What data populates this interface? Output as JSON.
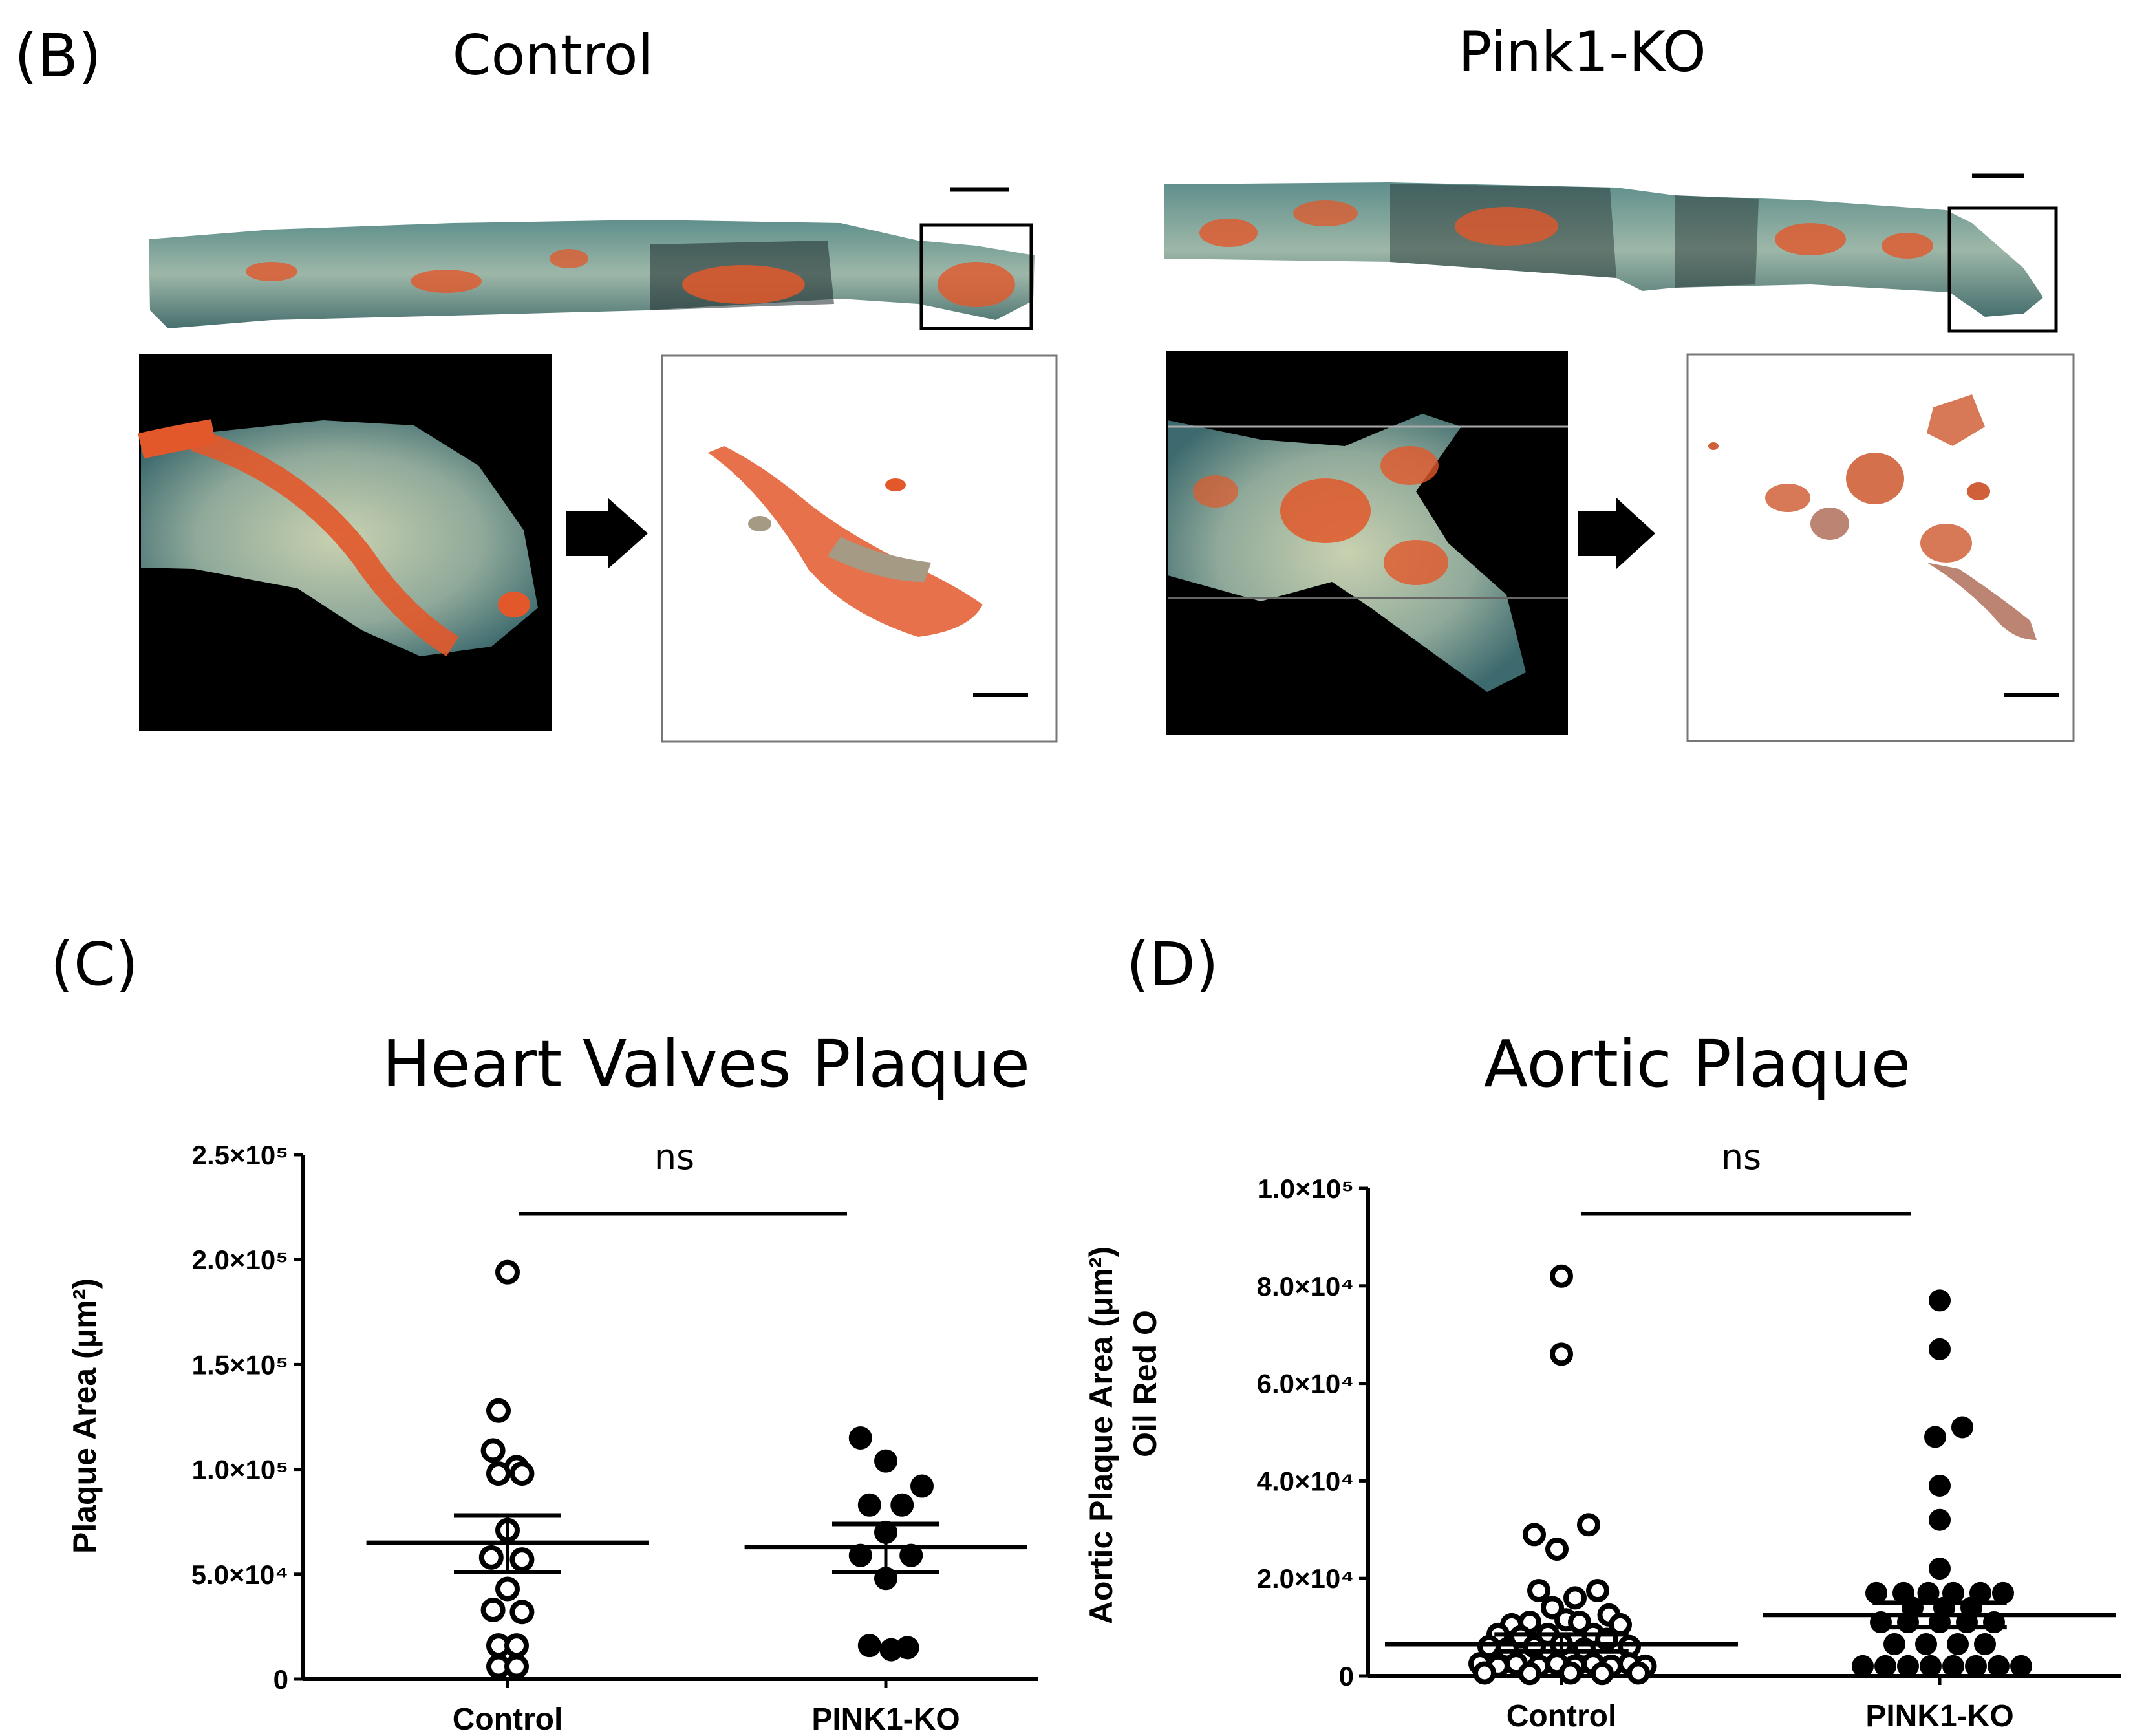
{
  "panel_b": {
    "label": "(B)",
    "control_title": "Control",
    "pink1_title": "Pink1-KO"
  },
  "panel_c": {
    "label": "(C)"
  },
  "panel_d": {
    "label": "(D)"
  },
  "colors": {
    "open_marker": "#ffffff",
    "filled_marker": "#000000",
    "stain": "#e2582a"
  },
  "chart_data": [
    {
      "type": "scatter",
      "title": "Heart Valves Plaque",
      "ylabel": "Plaque Area (μm²)",
      "categories": [
        "Control",
        "PINK1-KO"
      ],
      "yticks": [
        {
          "value": 0,
          "label": "0"
        },
        {
          "value": 50000,
          "label": "5.0×10⁴"
        },
        {
          "value": 100000,
          "label": "1.0×10⁵"
        },
        {
          "value": 150000,
          "label": "1.5×10⁵"
        },
        {
          "value": 200000,
          "label": "2.0×10⁵"
        },
        {
          "value": 250000,
          "label": "2.5×10⁵"
        }
      ],
      "ylim": [
        0,
        250000
      ],
      "significance": "ns",
      "series": [
        {
          "name": "Control",
          "marker": "open",
          "points": [
            [
              0,
              194000
            ],
            [
              -0.05,
              128000
            ],
            [
              -0.08,
              109000
            ],
            [
              0.05,
              101000
            ],
            [
              -0.05,
              98000
            ],
            [
              0.08,
              98000
            ],
            [
              0,
              71000
            ],
            [
              -0.09,
              58000
            ],
            [
              0.08,
              57000
            ],
            [
              0,
              43000
            ],
            [
              -0.08,
              33000
            ],
            [
              0.08,
              32000
            ],
            [
              -0.05,
              16000
            ],
            [
              0.05,
              16000
            ],
            [
              -0.05,
              6000
            ],
            [
              0.05,
              6000
            ]
          ],
          "mean": 65000,
          "sem_low": 51000,
          "sem_high": 78000
        },
        {
          "name": "PINK1-KO",
          "marker": "filled",
          "points": [
            [
              -0.14,
              115000
            ],
            [
              0,
              104000
            ],
            [
              0.2,
              92000
            ],
            [
              -0.09,
              83000
            ],
            [
              0.09,
              83000
            ],
            [
              0,
              70000
            ],
            [
              -0.14,
              59000
            ],
            [
              0.14,
              59000
            ],
            [
              0,
              48000
            ],
            [
              -0.09,
              16000
            ],
            [
              0.03,
              14000
            ],
            [
              0.12,
              15000
            ]
          ],
          "mean": 63000,
          "sem_low": 51000,
          "sem_high": 74000
        }
      ]
    },
    {
      "type": "scatter",
      "title": "Aortic Plaque",
      "ylabel": "Aortic Plaque Area (μm²)",
      "ylabel2": "Oil Red O",
      "categories": [
        "Control",
        "PINK1-KO"
      ],
      "yticks": [
        {
          "value": 0,
          "label": "0"
        },
        {
          "value": 20000,
          "label": "2.0×10⁴"
        },
        {
          "value": 40000,
          "label": "4.0×10⁴"
        },
        {
          "value": 60000,
          "label": "6.0×10⁴"
        },
        {
          "value": 80000,
          "label": "8.0×10⁴"
        },
        {
          "value": 100000,
          "label": "1.0×10⁵"
        }
      ],
      "ylim": [
        0,
        100000
      ],
      "significance": "ns",
      "series": [
        {
          "name": "Control",
          "marker": "open",
          "points": [
            [
              0,
              82000
            ],
            [
              0,
              66000
            ],
            [
              0.12,
              31000
            ],
            [
              -0.12,
              29000
            ],
            [
              -0.02,
              26000
            ],
            [
              -0.1,
              17500
            ],
            [
              0.16,
              17500
            ],
            [
              0.06,
              16000
            ],
            [
              -0.04,
              14000
            ],
            [
              0.21,
              12500
            ],
            [
              -0.22,
              10500
            ],
            [
              -0.14,
              11000
            ],
            [
              0.02,
              11500
            ],
            [
              0.08,
              11000
            ],
            [
              0.26,
              10500
            ],
            [
              -0.28,
              8500
            ],
            [
              -0.18,
              8000
            ],
            [
              -0.06,
              8500
            ],
            [
              0.14,
              8500
            ],
            [
              0.2,
              7500
            ],
            [
              -0.32,
              6000
            ],
            [
              -0.24,
              5500
            ],
            [
              -0.12,
              6000
            ],
            [
              0,
              6500
            ],
            [
              0.1,
              5500
            ],
            [
              0.3,
              6000
            ],
            [
              -0.36,
              2500
            ],
            [
              -0.28,
              2000
            ],
            [
              -0.2,
              2500
            ],
            [
              -0.1,
              2000
            ],
            [
              -0.02,
              2500
            ],
            [
              0.06,
              2000
            ],
            [
              0.14,
              2500
            ],
            [
              0.22,
              2000
            ],
            [
              0.3,
              2500
            ],
            [
              0.37,
              2000
            ],
            [
              -0.34,
              600
            ],
            [
              -0.14,
              500
            ],
            [
              0.04,
              600
            ],
            [
              0.18,
              500
            ],
            [
              0.34,
              600
            ]
          ],
          "mean": 6500,
          "sem_low": 5000,
          "sem_high": 8500
        },
        {
          "name": "PINK1-KO",
          "marker": "filled",
          "points": [
            [
              0,
              77000
            ],
            [
              0,
              67000
            ],
            [
              0.1,
              51000
            ],
            [
              -0.02,
              49000
            ],
            [
              0,
              39000
            ],
            [
              0,
              32000
            ],
            [
              0,
              22000
            ],
            [
              -0.28,
              17000
            ],
            [
              -0.16,
              17000
            ],
            [
              -0.05,
              17000
            ],
            [
              0.06,
              17000
            ],
            [
              0.18,
              17000
            ],
            [
              0.28,
              17000
            ],
            [
              -0.12,
              14000
            ],
            [
              0.02,
              14000
            ],
            [
              0.14,
              14000
            ],
            [
              -0.26,
              11000
            ],
            [
              -0.14,
              11000
            ],
            [
              0,
              11000
            ],
            [
              0.12,
              11000
            ],
            [
              0.24,
              11000
            ],
            [
              -0.2,
              6500
            ],
            [
              -0.06,
              6500
            ],
            [
              0.08,
              6500
            ],
            [
              0.2,
              6500
            ],
            [
              -0.34,
              2000
            ],
            [
              -0.24,
              2000
            ],
            [
              -0.14,
              2000
            ],
            [
              -0.04,
              2000
            ],
            [
              0.06,
              2000
            ],
            [
              0.16,
              2000
            ],
            [
              0.26,
              2000
            ],
            [
              0.36,
              2000
            ]
          ],
          "mean": 12500,
          "sem_low": 10000,
          "sem_high": 15000
        }
      ]
    }
  ]
}
